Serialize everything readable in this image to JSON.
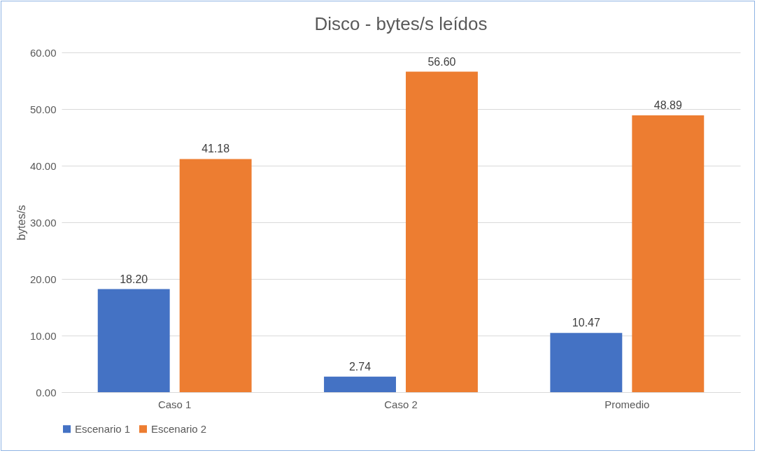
{
  "chart_data": {
    "type": "bar",
    "title": "Disco - bytes/s leídos",
    "ylabel": "bytes/s",
    "categories": [
      "Caso 1",
      "Caso 2",
      "Promedio"
    ],
    "series": [
      {
        "name": "Escenario 1",
        "color": "#4472c4",
        "values": [
          18.2,
          2.74,
          10.47
        ],
        "value_labels": [
          "18.20",
          "2.74",
          "10.47"
        ]
      },
      {
        "name": "Escenario 2",
        "color": "#ed7d31",
        "values": [
          41.18,
          56.6,
          48.89
        ],
        "value_labels": [
          "41.18",
          "56.60",
          "48.89"
        ]
      }
    ],
    "ylim": [
      0,
      60
    ],
    "yticks": [
      {
        "value": 0,
        "label": "0.00"
      },
      {
        "value": 10,
        "label": "10.00"
      },
      {
        "value": 20,
        "label": "20.00"
      },
      {
        "value": 30,
        "label": "30.00"
      },
      {
        "value": 40,
        "label": "40.00"
      },
      {
        "value": 50,
        "label": "50.00"
      },
      {
        "value": 60,
        "label": "60.00"
      }
    ],
    "grid": "y",
    "legend": "bottom"
  }
}
